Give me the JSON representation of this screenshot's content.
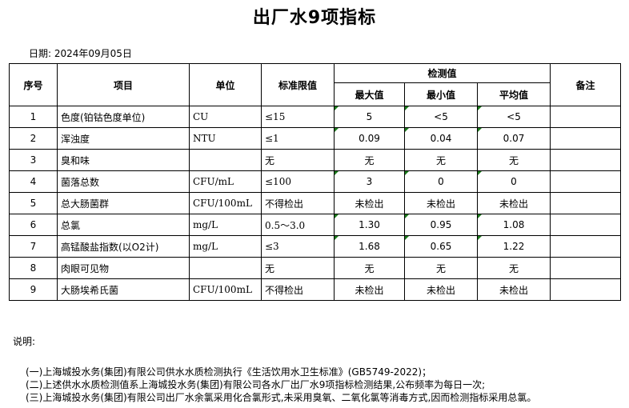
{
  "title": "出厂水9项指标",
  "date": "日期: 2024年09月05日",
  "headers": {
    "no": "序号",
    "item": "项目",
    "unit": "单位",
    "limit": "标准限值",
    "measured": "检测值",
    "max": "最大值",
    "min": "最小值",
    "avg": "平均值",
    "remark": "备注"
  },
  "rows": [
    {
      "no": "1",
      "item": "色度(铂钴色度单位)",
      "unit": "CU",
      "limit": "≤15",
      "max": "5",
      "min": "<5",
      "avg": "<5",
      "flag": true
    },
    {
      "no": "2",
      "item": "浑浊度",
      "unit": "NTU",
      "limit": "≤1",
      "max": "0.09",
      "min": "0.04",
      "avg": "0.07",
      "flag": true
    },
    {
      "no": "3",
      "item": "臭和味",
      "unit": "",
      "limit": "无",
      "max": "无",
      "min": "无",
      "avg": "无",
      "flag": false
    },
    {
      "no": "4",
      "item": "菌落总数",
      "unit": "CFU/mL",
      "limit": "≤100",
      "max": "3",
      "min": "0",
      "avg": "0",
      "flag": true
    },
    {
      "no": "5",
      "item": "总大肠菌群",
      "unit": "CFU/100mL",
      "limit": "不得检出",
      "max": "未检出",
      "min": "未检出",
      "avg": "未检出",
      "flag": false
    },
    {
      "no": "6",
      "item": "总氯",
      "unit": "mg/L",
      "limit": "0.5～3.0",
      "max": "1.30",
      "min": "0.95",
      "avg": "1.08",
      "flag": true
    },
    {
      "no": "7",
      "item": "高锰酸盐指数(以O2计)",
      "unit": "mg/L",
      "limit": "≤3",
      "max": "1.68",
      "min": "0.65",
      "avg": "1.22",
      "flag": true
    },
    {
      "no": "8",
      "item": "肉眼可见物",
      "unit": "",
      "limit": "无",
      "max": "无",
      "min": "无",
      "avg": "无",
      "flag": false
    },
    {
      "no": "9",
      "item": "大肠埃希氏菌",
      "unit": "CFU/100mL",
      "limit": "不得检出",
      "max": "未检出",
      "min": "未检出",
      "avg": "未检出",
      "flag": false
    }
  ],
  "notes": {
    "label": "说明:",
    "items": [
      "(一)上海城投水务(集团)有限公司供水水质检测执行《生活饮用水卫生标准》(GB5749-2022)；",
      "(二)上述供水水质检测值系上海城投水务(集团)有限公司各水厂出厂水9项指标检测结果,公布频率为每日一次;",
      "(三)上海城投水务(集团)有限公司出厂水余氯采用化合氯形式,未采用臭氧、二氧化氯等消毒方式,因而检测指标采用总氯。"
    ]
  }
}
